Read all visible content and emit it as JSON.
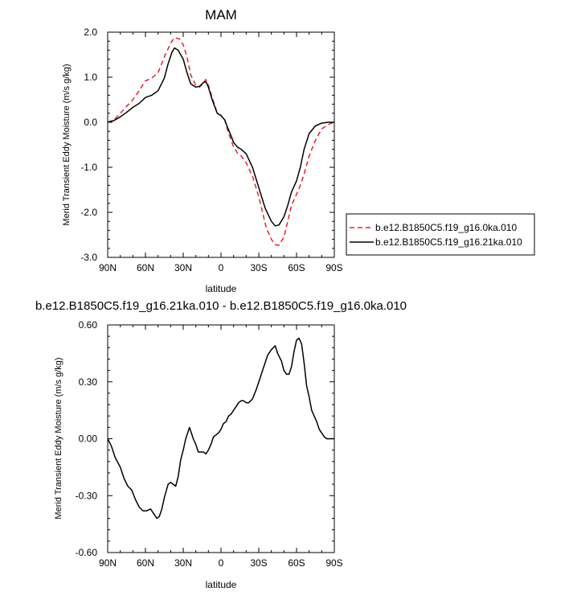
{
  "chart_data": [
    {
      "type": "line",
      "title": "MAM",
      "xlabel": "latitude",
      "ylabel": "Merid Transient Eddy Moisture (m/s g/kg)",
      "x_ticks": [
        {
          "value": -90,
          "label": "90N"
        },
        {
          "value": -60,
          "label": "60N"
        },
        {
          "value": -30,
          "label": "30N"
        },
        {
          "value": 0,
          "label": "0"
        },
        {
          "value": 30,
          "label": "30S"
        },
        {
          "value": 60,
          "label": "60S"
        },
        {
          "value": 90,
          "label": "90S"
        }
      ],
      "y_ticks": [
        {
          "value": 2.0,
          "label": "2.0"
        },
        {
          "value": 1.0,
          "label": "1.0"
        },
        {
          "value": 0.0,
          "label": "0.0"
        },
        {
          "value": -1.0,
          "label": "-1.0"
        },
        {
          "value": -2.0,
          "label": "-2.0"
        },
        {
          "value": -3.0,
          "label": "-3.0"
        }
      ],
      "xlim": [
        -90,
        90
      ],
      "ylim": [
        -3.0,
        2.0
      ],
      "legend_position": "right",
      "series": [
        {
          "name": "b.e12.B1850C5.f19_g16.0ka.010",
          "color": "#e8202a",
          "dash": "dashed",
          "x": [
            -90,
            -85,
            -80,
            -75,
            -70,
            -65,
            -60,
            -55,
            -50,
            -45,
            -40,
            -37,
            -33,
            -30,
            -27,
            -24,
            -20,
            -17,
            -14,
            -12,
            -10,
            -7,
            -3,
            0,
            3,
            5,
            8,
            10,
            13,
            16,
            20,
            25,
            30,
            33,
            36,
            40,
            43,
            46,
            50,
            53,
            56,
            60,
            63,
            66,
            70,
            75,
            80,
            85,
            90
          ],
          "y": [
            0.0,
            0.05,
            0.2,
            0.35,
            0.5,
            0.7,
            0.92,
            0.98,
            1.1,
            1.45,
            1.75,
            1.88,
            1.85,
            1.72,
            1.45,
            1.05,
            0.82,
            0.78,
            0.88,
            0.95,
            0.82,
            0.55,
            0.2,
            0.15,
            0.05,
            -0.15,
            -0.4,
            -0.55,
            -0.68,
            -0.75,
            -0.9,
            -1.2,
            -1.65,
            -2.0,
            -2.35,
            -2.6,
            -2.72,
            -2.73,
            -2.55,
            -2.2,
            -1.85,
            -1.6,
            -1.4,
            -1.15,
            -0.75,
            -0.4,
            -0.15,
            -0.05,
            0.0
          ]
        },
        {
          "name": "b.e12.B1850C5.f19_g16.21ka.010",
          "color": "#000000",
          "dash": "solid",
          "x": [
            -90,
            -85,
            -80,
            -75,
            -70,
            -65,
            -60,
            -55,
            -50,
            -45,
            -42,
            -39,
            -37,
            -34,
            -30,
            -27,
            -24,
            -20,
            -17,
            -14,
            -12,
            -10,
            -7,
            -3,
            0,
            3,
            5,
            8,
            10,
            13,
            16,
            20,
            25,
            30,
            35,
            40,
            43,
            46,
            50,
            53,
            56,
            60,
            63,
            66,
            70,
            75,
            80,
            85,
            90
          ],
          "y": [
            0.0,
            0.04,
            0.12,
            0.22,
            0.33,
            0.42,
            0.55,
            0.6,
            0.7,
            0.98,
            1.3,
            1.55,
            1.65,
            1.6,
            1.4,
            1.1,
            0.85,
            0.78,
            0.8,
            0.88,
            0.9,
            0.78,
            0.5,
            0.2,
            0.15,
            0.05,
            -0.1,
            -0.3,
            -0.45,
            -0.55,
            -0.6,
            -0.7,
            -1.0,
            -1.45,
            -1.9,
            -2.2,
            -2.3,
            -2.28,
            -2.1,
            -1.85,
            -1.55,
            -1.3,
            -1.0,
            -0.6,
            -0.25,
            -0.08,
            -0.02,
            0.0,
            0.0
          ]
        }
      ]
    },
    {
      "type": "line",
      "title": "b.e12.B1850C5.f19_g16.21ka.010 - b.e12.B1850C5.f19_g16.0ka.010",
      "xlabel": "latitude",
      "ylabel": "Merid Transient Eddy Moisture (m/s g/kg)",
      "x_ticks": [
        {
          "value": -90,
          "label": "90N"
        },
        {
          "value": -60,
          "label": "60N"
        },
        {
          "value": -30,
          "label": "30N"
        },
        {
          "value": 0,
          "label": "0"
        },
        {
          "value": 30,
          "label": "30S"
        },
        {
          "value": 60,
          "label": "60S"
        },
        {
          "value": 90,
          "label": "90S"
        }
      ],
      "y_ticks": [
        {
          "value": 0.6,
          "label": "0.60"
        },
        {
          "value": 0.3,
          "label": "0.30"
        },
        {
          "value": 0.0,
          "label": "0.00"
        },
        {
          "value": -0.3,
          "label": "-0.30"
        },
        {
          "value": -0.6,
          "label": "-0.60"
        }
      ],
      "xlim": [
        -90,
        90
      ],
      "ylim": [
        -0.6,
        0.6
      ],
      "series": [
        {
          "color": "#000000",
          "dash": "solid",
          "x": [
            -90,
            -87,
            -84,
            -80,
            -77,
            -74,
            -71,
            -68,
            -65,
            -62,
            -59,
            -56,
            -53,
            -51,
            -49,
            -47,
            -45,
            -42,
            -40,
            -38,
            -36,
            -34,
            -32,
            -30,
            -28,
            -25,
            -22,
            -20,
            -18,
            -16,
            -14,
            -12,
            -10,
            -8,
            -6,
            -4,
            -2,
            0,
            2,
            4,
            6,
            8,
            10,
            12,
            14,
            16,
            18,
            20,
            22,
            25,
            28,
            31,
            34,
            37,
            40,
            43,
            45,
            48,
            50,
            52,
            54,
            56,
            58,
            60,
            62,
            64,
            66,
            68,
            70,
            72,
            74,
            76,
            78,
            80,
            82,
            84,
            86,
            88,
            90
          ],
          "y": [
            0.0,
            -0.04,
            -0.1,
            -0.15,
            -0.21,
            -0.25,
            -0.27,
            -0.32,
            -0.36,
            -0.38,
            -0.38,
            -0.37,
            -0.4,
            -0.42,
            -0.41,
            -0.37,
            -0.31,
            -0.24,
            -0.23,
            -0.24,
            -0.25,
            -0.2,
            -0.11,
            -0.06,
            0.0,
            0.06,
            0.0,
            -0.03,
            -0.07,
            -0.07,
            -0.07,
            -0.08,
            -0.06,
            -0.03,
            0.01,
            0.02,
            0.03,
            0.05,
            0.08,
            0.09,
            0.12,
            0.13,
            0.15,
            0.17,
            0.19,
            0.2,
            0.2,
            0.19,
            0.19,
            0.21,
            0.26,
            0.32,
            0.38,
            0.44,
            0.47,
            0.49,
            0.45,
            0.41,
            0.36,
            0.34,
            0.34,
            0.38,
            0.46,
            0.52,
            0.53,
            0.5,
            0.4,
            0.28,
            0.22,
            0.15,
            0.12,
            0.09,
            0.05,
            0.03,
            0.01,
            0.0,
            0.0,
            0.0,
            0.0
          ]
        }
      ]
    }
  ]
}
